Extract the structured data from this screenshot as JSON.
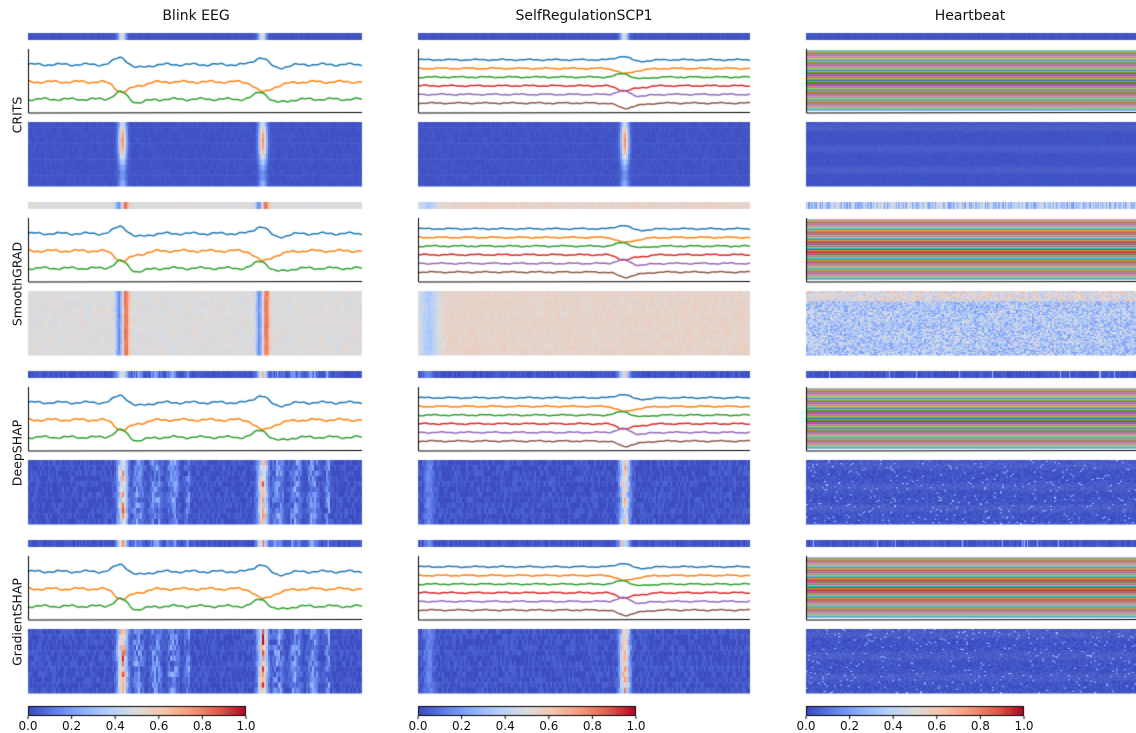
{
  "chart_data": {
    "type": "heatmap",
    "description_columns": [
      "Blink EEG",
      "SelfRegulationSCP1",
      "Heartbeat"
    ],
    "methods": [
      "CRITS",
      "SmoothGRAD",
      "DeepSHAP",
      "GradientSHAP"
    ],
    "colormap": "coolwarm",
    "colorbar": {
      "range": [
        0.0,
        1.0
      ],
      "ticks": [
        "0.0",
        "0.2",
        "0.4",
        "0.6",
        "0.8",
        "1.0"
      ]
    },
    "datasets": [
      {
        "name": "Blink EEG",
        "series_colors": [
          "#1f77b4",
          "#ff7f0e",
          "#2ca02c"
        ],
        "channels": 3,
        "events": [
          0.28,
          0.7
        ]
      },
      {
        "name": "SelfRegulationSCP1",
        "series_colors": [
          "#1f77b4",
          "#ff7f0e",
          "#2ca02c",
          "#d62728",
          "#9467bd",
          "#8c564b"
        ],
        "channels": 6,
        "events": [
          0.62
        ]
      },
      {
        "name": "Heartbeat",
        "series_colors": [
          "#1f77b4",
          "#ff7f0e",
          "#2ca02c",
          "#d62728",
          "#9467bd",
          "#8c564b",
          "#e377c2",
          "#7f7f7f",
          "#bcbd22",
          "#17becf"
        ],
        "channels": 61,
        "events": []
      }
    ],
    "attribution_profile": {
      "CRITS": {
        "baseline": 0.02,
        "noise": 0.02,
        "peak": 0.75,
        "style": "focused"
      },
      "SmoothGRAD": {
        "baseline": 0.5,
        "noise": 0.06,
        "peak": 0.85,
        "style": "diverging"
      },
      "DeepSHAP": {
        "baseline": 0.02,
        "noise": 0.08,
        "peak": 0.7,
        "style": "spread"
      },
      "GradientSHAP": {
        "baseline": 0.02,
        "noise": 0.08,
        "peak": 0.8,
        "style": "spread"
      }
    }
  }
}
